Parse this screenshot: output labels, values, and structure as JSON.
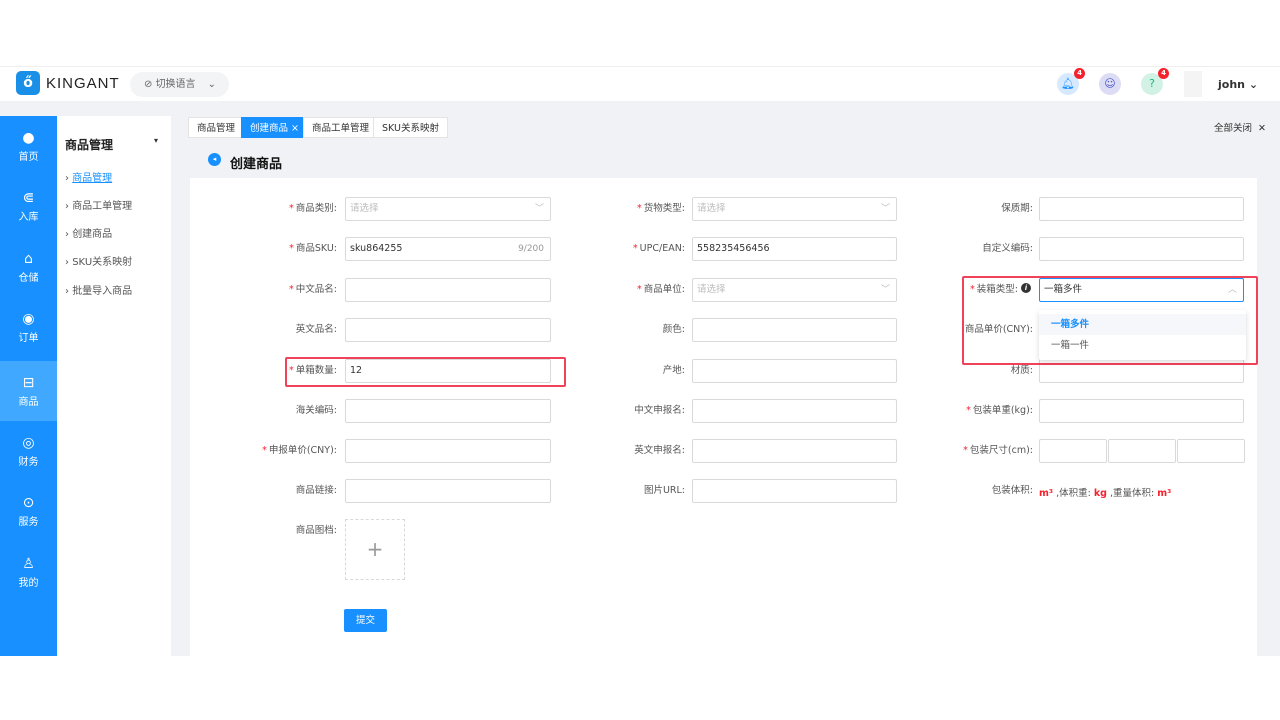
{
  "header": {
    "brand": "KINGANT",
    "logo_icon": "ant-logo-icon",
    "lang": "切换语言",
    "notifications": "4",
    "help_badge": "4",
    "user": "john"
  },
  "sidebar": {
    "items": [
      {
        "label": "首页",
        "icon": "palette-icon"
      },
      {
        "label": "入库",
        "icon": "inbound-icon"
      },
      {
        "label": "仓储",
        "icon": "home-icon"
      },
      {
        "label": "订单",
        "icon": "order-icon"
      },
      {
        "label": "商品",
        "icon": "basket-icon"
      },
      {
        "label": "财务",
        "icon": "finance-icon"
      },
      {
        "label": "服务",
        "icon": "service-icon"
      },
      {
        "label": "我的",
        "icon": "user-icon"
      }
    ],
    "active": "商品"
  },
  "submenu": {
    "title": "商品管理",
    "items": [
      "商品管理",
      "商品工单管理",
      "创建商品",
      "SKU关系映射",
      "批量导入商品"
    ]
  },
  "tabs": [
    "商品管理",
    "创建商品",
    "商品工单管理",
    "SKU关系映射"
  ],
  "close_all": "全部关闭",
  "page_title": "创建商品",
  "form": {
    "col1": [
      {
        "label": "商品类别:",
        "req": true,
        "placeholder": "请选择",
        "select": true
      },
      {
        "label": "商品SKU:",
        "req": true,
        "value": "sku864255",
        "count": "9/200"
      },
      {
        "label": "中文品名:",
        "req": true,
        "value": ""
      },
      {
        "label": "英文品名:",
        "req": false,
        "value": ""
      },
      {
        "label": "单箱数量:",
        "req": true,
        "value": "12"
      },
      {
        "label": "海关编码:",
        "req": false,
        "value": ""
      },
      {
        "label": "申报单价(CNY):",
        "req": true,
        "value": ""
      },
      {
        "label": "商品链接:",
        "req": false,
        "value": ""
      }
    ],
    "col2": [
      {
        "label": "货物类型:",
        "req": true,
        "placeholder": "请选择",
        "select": true
      },
      {
        "label": "UPC/EAN:",
        "req": true,
        "value": "558235456456"
      },
      {
        "label": "商品单位:",
        "req": true,
        "placeholder": "请选择",
        "select": true
      },
      {
        "label": "颜色:",
        "req": false,
        "value": ""
      },
      {
        "label": "产地:",
        "req": false,
        "value": ""
      },
      {
        "label": "中文申报名:",
        "req": false,
        "value": ""
      },
      {
        "label": "英文申报名:",
        "req": false,
        "value": ""
      },
      {
        "label": "图片URL:",
        "req": false,
        "value": ""
      }
    ],
    "col3": [
      {
        "label": "保质期:",
        "req": false,
        "value": ""
      },
      {
        "label": "自定义编码:",
        "req": false,
        "value": ""
      },
      {
        "label": "装箱类型:",
        "req": true,
        "value": "一箱多件",
        "select": true
      },
      {
        "label": "商品单价(CNY):",
        "req": false,
        "value": ""
      },
      {
        "label": "材质:",
        "req": false,
        "value": ""
      },
      {
        "label": "包装单重(kg):",
        "req": true,
        "value": ""
      },
      {
        "label": "包装尺寸(cm):",
        "req": true,
        "value": ""
      },
      {
        "label": "包装体积:",
        "req": false,
        "value": ""
      }
    ],
    "volume": {
      "v1": "m³",
      "t1": " ,体积重: ",
      "v2": "kg",
      "t2": " ,重量体积: ",
      "v3": "m³"
    },
    "image_label": "商品图档:",
    "dropdown_options": [
      "一箱多件",
      "一箱一件"
    ],
    "submit": "提交"
  },
  "colors": {
    "primary": "#1890ff",
    "highlight": "#f0435a"
  }
}
